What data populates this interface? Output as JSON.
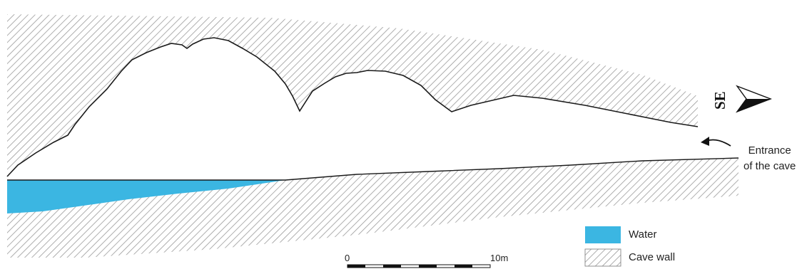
{
  "direction_label": "SE",
  "entrance_label": [
    "Entrance",
    "of the cave"
  ],
  "legend": [
    {
      "label": "Water",
      "color": "#3bb6e2"
    },
    {
      "label": "Cave wall",
      "pattern": "hatch"
    }
  ],
  "scale": {
    "start": "0",
    "end": "10m"
  },
  "colors": {
    "water": "#3bb6e2",
    "outline": "#1a1a1a",
    "hatch": "#9a9a9a"
  }
}
